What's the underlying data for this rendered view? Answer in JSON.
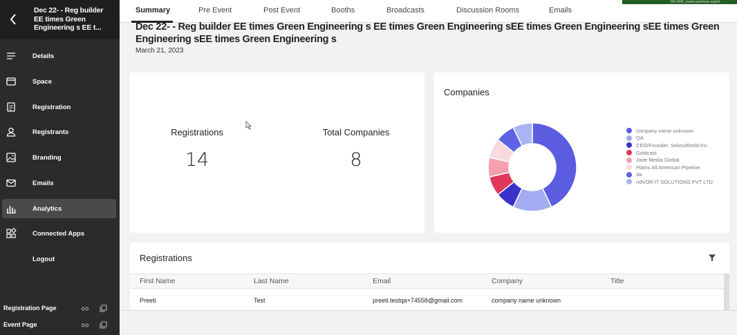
{
  "sidebar": {
    "event_title": "Dec 22- - Reg builder EE times Green Engineering s EE t...",
    "nav": [
      {
        "label": "Details",
        "icon": "menu-lines-icon"
      },
      {
        "label": "Space",
        "icon": "window-icon"
      },
      {
        "label": "Registration",
        "icon": "clipboard-icon"
      },
      {
        "label": "Registrants",
        "icon": "person-icon"
      },
      {
        "label": "Branding",
        "icon": "image-icon"
      },
      {
        "label": "Emails",
        "icon": "envelope-icon"
      },
      {
        "label": "Analytics",
        "icon": "bar-chart-icon"
      },
      {
        "label": "Connected Apps",
        "icon": "apps-icon"
      },
      {
        "label": "Logout",
        "icon": ""
      }
    ],
    "active_nav": "Analytics",
    "footer": [
      {
        "label": "Registration Page"
      },
      {
        "label": "Event Page"
      }
    ]
  },
  "tabs": [
    "Summary",
    "Pre Event",
    "Post Event",
    "Booths",
    "Broadcasts",
    "Discussion Rooms",
    "Emails"
  ],
  "active_tab": "Summary",
  "env_badge": "IW-1946_event-summary-export",
  "page": {
    "title": "Dec 22- - Reg builder EE times Green Engineering s EE times Green Engineering sEE times Green Engineering sEE times Green Engineering sEE times Green Engineering s",
    "date": "March 21, 2023"
  },
  "stats": {
    "registrations_label": "Registrations",
    "registrations_value": "14",
    "companies_label": "Total Companies",
    "companies_value": "8"
  },
  "companies_card": {
    "title": "Companies"
  },
  "chart_data": {
    "type": "pie",
    "title": "Companies",
    "donut": true,
    "legend_position": "right",
    "labels": [
      "company name unknown",
      "QA",
      "CEO/Founder, SekouWorld Inc.",
      "Goldcast",
      "Jade Media Global",
      "Plains All American Pipeline",
      "da",
      "ndVOR IT SOLUTIONS PVT LTD"
    ],
    "values": [
      6,
      2,
      1,
      1,
      1,
      1,
      1,
      1
    ],
    "colors": [
      "#5c5ce0",
      "#a3abf2",
      "#3a32c8",
      "#e0385a",
      "#f4a0ae",
      "#f8dadd",
      "#5f63e3",
      "#a9b4f2"
    ]
  },
  "registrations_table": {
    "title": "Registrations",
    "columns": [
      "First Name",
      "Last Name",
      "Email",
      "Company",
      "Title"
    ],
    "rows": [
      [
        "Preeti",
        "Test",
        "preeti.testqa+74558@gmail.com",
        "company name unknown",
        ""
      ]
    ]
  }
}
